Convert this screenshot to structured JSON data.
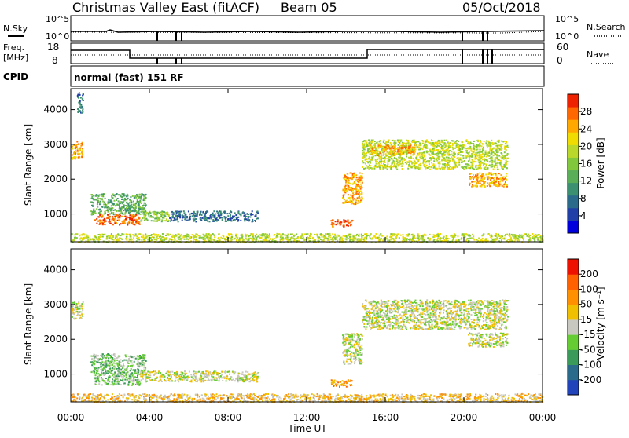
{
  "header": {
    "station": "Christmas Valley East (fitACF)",
    "beam": "Beam 05",
    "date": "05/Oct/2018"
  },
  "summary_panels": {
    "nsky_label": "N.Sky",
    "nsky_ticks": [
      "10^5",
      "10^0"
    ],
    "nsearch_label": "N.Search",
    "nsearch_ticks": [
      "10^5",
      "10^0"
    ],
    "freq_label_1": "Freq.",
    "freq_label_2": "[MHz]",
    "freq_ticks": [
      "18",
      "8"
    ],
    "nave_label": "Nave",
    "nave_ticks": [
      "60",
      "0"
    ],
    "cpid_label": "CPID",
    "cpid_value": "normal (fast) 151 RF"
  },
  "axes": {
    "ylabel": "Slant Range [km]",
    "xlabel": "Time UT",
    "y_ticks": [
      "1000",
      "2000",
      "3000",
      "4000"
    ],
    "x_ticks": [
      "00:00",
      "04:00",
      "08:00",
      "12:00",
      "16:00",
      "20:00",
      "00:00"
    ]
  },
  "chart_data": [
    {
      "type": "heatmap",
      "name": "power",
      "xlabel": "Time UT",
      "ylabel": "Slant Range [km]",
      "xlim": [
        0,
        24
      ],
      "ylim": [
        200,
        4600
      ],
      "colorbar_label": "Power [dB]",
      "colorbar_ticks": [
        "28",
        "24",
        "20",
        "16",
        "12",
        "8",
        "4"
      ],
      "colors": [
        "#0000dd",
        "#2040a8",
        "#2a6a8a",
        "#3a9070",
        "#5aae58",
        "#82c83c",
        "#b9d82a",
        "#f0dc00",
        "#ffa800",
        "#ff6800",
        "#ee2200"
      ],
      "regions": [
        {
          "t": [
            0.0,
            0.6
          ],
          "r": [
            2600,
            3100
          ],
          "level": 8
        },
        {
          "t": [
            0.3,
            0.6
          ],
          "r": [
            3900,
            4500
          ],
          "level": 2
        },
        {
          "t": [
            1.0,
            3.8
          ],
          "r": [
            1000,
            1600
          ],
          "level": 4
        },
        {
          "t": [
            1.2,
            3.5
          ],
          "r": [
            700,
            1000
          ],
          "level": 9
        },
        {
          "t": [
            3.5,
            5.0
          ],
          "r": [
            800,
            1100
          ],
          "level": 5
        },
        {
          "t": [
            5.0,
            9.5
          ],
          "r": [
            800,
            1100
          ],
          "level": 2
        },
        {
          "t": [
            0.0,
            24.0
          ],
          "r": [
            200,
            450
          ],
          "level": 6
        },
        {
          "t": [
            13.2,
            14.3
          ],
          "r": [
            650,
            850
          ],
          "level": 9
        },
        {
          "t": [
            13.8,
            14.8
          ],
          "r": [
            1300,
            2200
          ],
          "level": 8
        },
        {
          "t": [
            14.8,
            22.2
          ],
          "r": [
            2300,
            3150
          ],
          "level": 6
        },
        {
          "t": [
            15.2,
            17.5
          ],
          "r": [
            2700,
            3000
          ],
          "level": 8
        },
        {
          "t": [
            20.2,
            22.2
          ],
          "r": [
            1800,
            2200
          ],
          "level": 8
        }
      ]
    },
    {
      "type": "heatmap",
      "name": "velocity",
      "xlabel": "Time UT",
      "ylabel": "Slant Range [km]",
      "xlim": [
        0,
        24
      ],
      "ylim": [
        200,
        4600
      ],
      "colorbar_label": "Velocity [m s⁻¹]",
      "colorbar_ticks": [
        "200",
        "100",
        "50",
        "15",
        "-15",
        "-50",
        "-100",
        "-200"
      ],
      "colors": [
        "#2244bb",
        "#2a6a8a",
        "#3a9a5a",
        "#66cc33",
        "#c8c8c0",
        "#f0c000",
        "#ff9000",
        "#ff6000",
        "#ee1100"
      ],
      "regions": [
        {
          "t": [
            0.0,
            0.6
          ],
          "r": [
            2600,
            3100
          ],
          "level": 4
        },
        {
          "t": [
            1.0,
            3.8
          ],
          "r": [
            1000,
            1600
          ],
          "level": 3
        },
        {
          "t": [
            1.2,
            3.5
          ],
          "r": [
            700,
            1000
          ],
          "level": 3
        },
        {
          "t": [
            3.5,
            5.0
          ],
          "r": [
            800,
            1100
          ],
          "level": 4
        },
        {
          "t": [
            5.0,
            9.5
          ],
          "r": [
            800,
            1100
          ],
          "level": 4
        },
        {
          "t": [
            0.0,
            24.0
          ],
          "r": [
            200,
            450
          ],
          "level": 5
        },
        {
          "t": [
            13.2,
            14.3
          ],
          "r": [
            650,
            850
          ],
          "level": 6
        },
        {
          "t": [
            13.8,
            14.8
          ],
          "r": [
            1300,
            2200
          ],
          "level": 4
        },
        {
          "t": [
            14.8,
            22.2
          ],
          "r": [
            2300,
            3150
          ],
          "level": 4
        },
        {
          "t": [
            20.2,
            22.2
          ],
          "r": [
            1800,
            2200
          ],
          "level": 4
        }
      ]
    }
  ]
}
